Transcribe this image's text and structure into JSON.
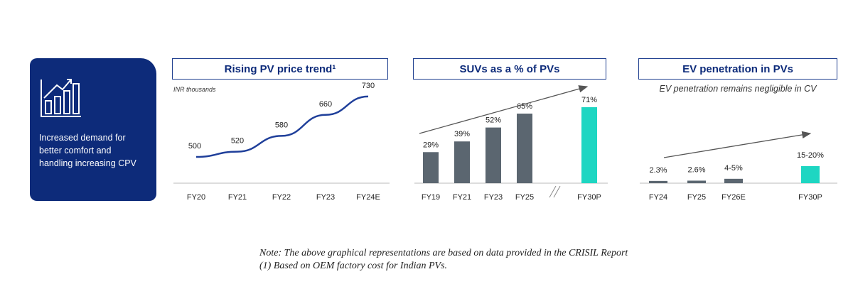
{
  "side_panel": {
    "icon": "bar-chart-trend-icon",
    "lines": [
      "Increased demand for",
      "better comfort and",
      "handling increasing CPV"
    ]
  },
  "note": {
    "line1": "Note: The above graphical representations are based on data provided in the CRISIL Report",
    "line2": "(1) Based on OEM factory cost for Indian PVs."
  },
  "colors": {
    "navy": "#0d2b7a",
    "line_blue": "#1f3f9a",
    "bar_gray": "#5b6670",
    "bar_teal": "#1ed6c2",
    "arrow": "#555555"
  },
  "chart_data": [
    {
      "type": "line",
      "title": "Rising PV price trend¹",
      "unit_label": "INR thousands",
      "categories": [
        "FY20",
        "FY21",
        "FY22",
        "FY23",
        "FY24E"
      ],
      "series": [
        {
          "values": [
            500,
            520,
            580,
            660,
            730
          ]
        }
      ],
      "data_labels": [
        "500",
        "520",
        "580",
        "660",
        "730"
      ]
    },
    {
      "type": "bar",
      "title": "SUVs as a % of PVs",
      "categories": [
        "FY19",
        "FY21",
        "FY23",
        "FY25",
        "FY30P"
      ],
      "values": [
        29,
        39,
        52,
        65,
        71
      ],
      "data_labels": [
        "29%",
        "39%",
        "52%",
        "65%",
        "71%"
      ],
      "highlight": [
        "FY30P"
      ],
      "axis_break_before": "FY30P"
    },
    {
      "type": "bar",
      "title": "EV penetration in PVs",
      "subtitle": "EV penetration remains negligible in CV",
      "categories": [
        "FY24",
        "FY25",
        "FY26E",
        "FY30P"
      ],
      "values": [
        2.3,
        2.6,
        4.5,
        17.5
      ],
      "data_labels": [
        "2.3%",
        "2.6%",
        "4-5%",
        "15-20%"
      ],
      "highlight": [
        "FY30P"
      ]
    }
  ]
}
